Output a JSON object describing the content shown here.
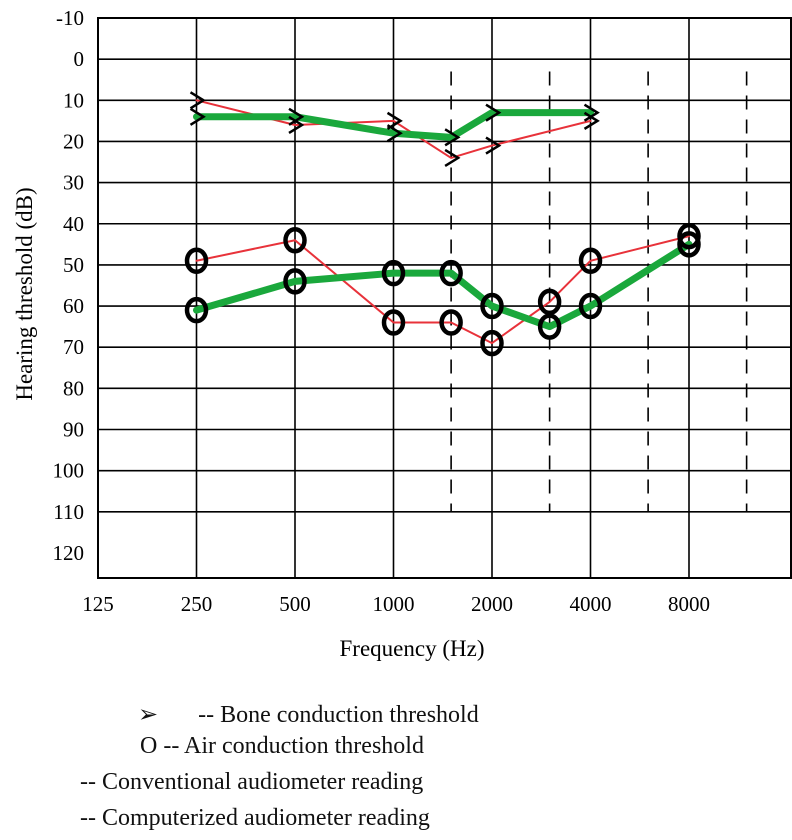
{
  "chart_data": {
    "type": "line",
    "ylabel": "Hearing threshold (dB)",
    "xlabel": "Frequency (Hz)",
    "x_tick_labels": [
      "125",
      "250",
      "500",
      "1000",
      "2000",
      "4000",
      "8000"
    ],
    "y_tick_labels": [
      "-10",
      "0",
      "10",
      "20",
      "30",
      "40",
      "50",
      "60",
      "70",
      "80",
      "90",
      "100",
      "110",
      "120"
    ],
    "ylim": [
      -10,
      120
    ],
    "y_inverted": true,
    "grid": true,
    "intermediate_frequencies_dashed": [
      1500,
      3000,
      6000,
      12000
    ],
    "series": [
      {
        "name": "Bone conduction threshold",
        "reading": "Conventional audiometer reading",
        "symbol": ">",
        "color": "#e8323a",
        "x": [
          250,
          500,
          1000,
          1500,
          2000,
          4000
        ],
        "y": [
          10,
          16,
          15,
          24,
          21,
          15
        ]
      },
      {
        "name": "Bone conduction threshold",
        "reading": "Computerized audiometer reading",
        "symbol": ">",
        "color": "#1aa83c",
        "x": [
          250,
          500,
          1000,
          1500,
          2000,
          4000
        ],
        "y": [
          14,
          14,
          18,
          19,
          13,
          13
        ]
      },
      {
        "name": "Air conduction threshold",
        "reading": "Conventional audiometer reading",
        "symbol": "O",
        "color": "#e8323a",
        "x": [
          250,
          500,
          1000,
          1500,
          2000,
          3000,
          4000,
          8000
        ],
        "y": [
          49,
          44,
          64,
          64,
          69,
          59,
          49,
          43
        ]
      },
      {
        "name": "Air conduction threshold",
        "reading": "Computerized audiometer reading",
        "symbol": "O",
        "color": "#1aa83c",
        "x": [
          250,
          500,
          1000,
          1500,
          2000,
          3000,
          4000,
          8000
        ],
        "y": [
          61,
          54,
          52,
          52,
          60,
          65,
          60,
          45
        ]
      }
    ]
  },
  "legend": {
    "bone_symbol": "➢",
    "bone_text": "-- Bone conduction threshold",
    "air_text": "O -- Air conduction threshold",
    "conventional_text": "-- Conventional audiometer reading",
    "computerized_text": "-- Computerized audiometer reading"
  }
}
